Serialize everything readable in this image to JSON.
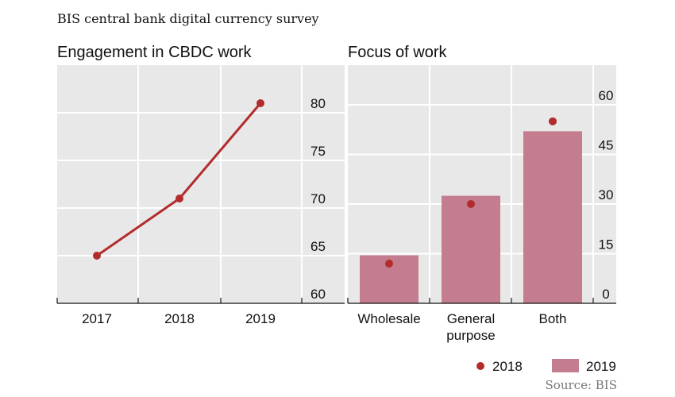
{
  "header": {
    "supertitle": "BIS central bank digital currency survey"
  },
  "colors": {
    "series_2018": "#b22c2c",
    "series_2019": "#c47d8e",
    "panel_bg": "#e8e8e8"
  },
  "chart_data": [
    {
      "type": "line",
      "title": "Engagement in CBDC work",
      "x": [
        "2017",
        "2018",
        "2019"
      ],
      "series": [
        {
          "values": [
            65,
            71,
            81
          ]
        }
      ],
      "ylim": [
        60,
        85
      ],
      "yticks": [
        60,
        65,
        70,
        75,
        80
      ],
      "yaxis_side": "right",
      "grid": true
    },
    {
      "type": "bar",
      "title": "Focus of work",
      "categories": [
        "Wholesale",
        "General purpose",
        "Both"
      ],
      "series": [
        {
          "name": "2018",
          "kind": "dot",
          "values": [
            12,
            30,
            55
          ]
        },
        {
          "name": "2019",
          "kind": "bar",
          "values": [
            14.5,
            32.5,
            52
          ]
        }
      ],
      "ylim": [
        0,
        72
      ],
      "yticks": [
        0,
        15,
        30,
        45,
        60
      ],
      "yaxis_side": "right",
      "grid": true
    }
  ],
  "legend": {
    "placement": "bottom-right",
    "items": [
      "2018",
      "2019"
    ]
  },
  "source": "Source: BIS"
}
